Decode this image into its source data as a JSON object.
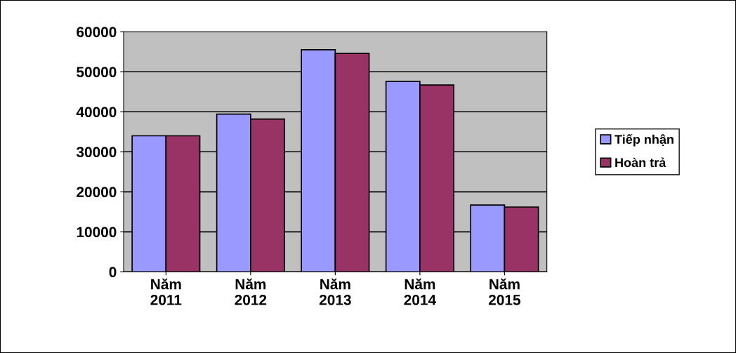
{
  "chart_data": {
    "type": "bar",
    "categories": [
      "Năm\n2011",
      "Năm\n2012",
      "Năm\n2013",
      "Năm\n2014",
      "Năm\n2015"
    ],
    "series": [
      {
        "name": "Tiếp nhận",
        "color": "#9999ff",
        "values": [
          34000,
          39400,
          55500,
          47600,
          16700
        ]
      },
      {
        "name": "Hoàn trả",
        "color": "#993366",
        "values": [
          34000,
          38200,
          54600,
          46700,
          16200
        ]
      }
    ],
    "ylim": [
      0,
      60000
    ],
    "yticks": [
      0,
      10000,
      20000,
      30000,
      40000,
      50000,
      60000
    ],
    "grid": "y",
    "legend": "right"
  }
}
